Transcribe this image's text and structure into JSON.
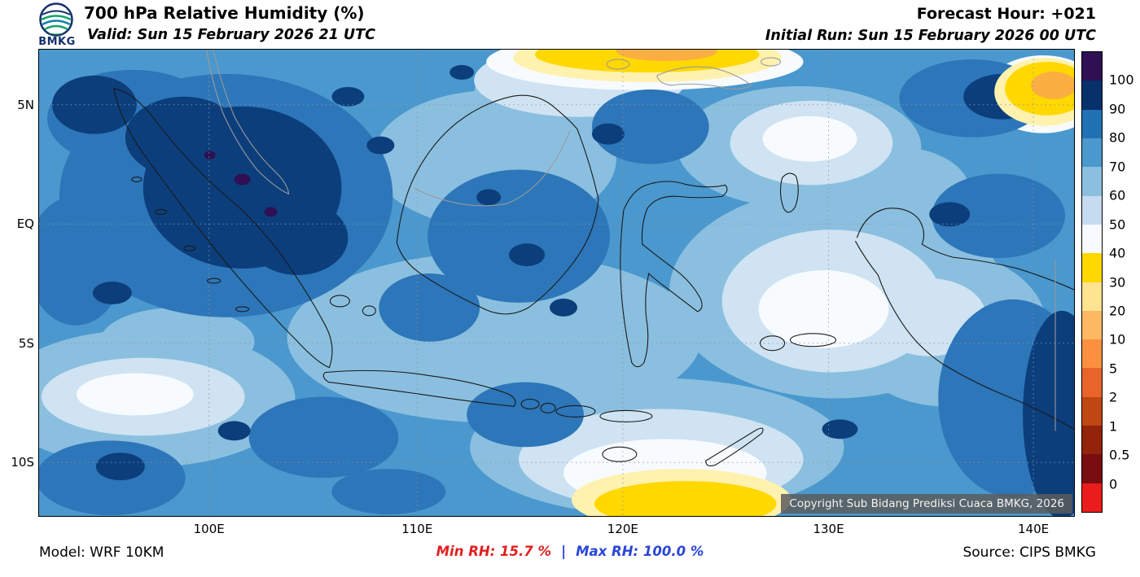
{
  "header": {
    "logo_text": "BMKG",
    "title": "700 hPa Relative Humidity (%)",
    "forecast_hour": "Forecast Hour: +021",
    "valid": "Valid: Sun 15 February 2026 21 UTC",
    "initial_run": "Initial Run: Sun 15 February 2026 00 UTC"
  },
  "map": {
    "copyright": "Copyright Sub Bidang Prediksi Cuaca BMKG, 2026",
    "lat_ticks": [
      {
        "label": "5N",
        "pos": 0.1183
      },
      {
        "label": "EQ",
        "pos": 0.3739
      },
      {
        "label": "5S",
        "pos": 0.6296
      },
      {
        "label": "10S",
        "pos": 0.8852
      }
    ],
    "lon_ticks": [
      {
        "label": "100E",
        "pos": 0.1642
      },
      {
        "label": "110E",
        "pos": 0.3653
      },
      {
        "label": "120E",
        "pos": 0.564
      },
      {
        "label": "130E",
        "pos": 0.7628
      },
      {
        "label": "140E",
        "pos": 0.9607
      }
    ]
  },
  "footer": {
    "model": "Model: WRF 10KM",
    "min_rh": "Min RH:  15.7 %",
    "separator": "|",
    "max_rh": "Max RH: 100.0 %",
    "source": "Source: CIPS BMKG",
    "min_color": "#e01f1f",
    "max_color": "#2a46d8"
  },
  "chart_data": {
    "type": "heatmap",
    "title": "700 hPa Relative Humidity (%)",
    "variable": "Relative Humidity",
    "level": "700 hPa",
    "units": "%",
    "forecast_hour": "+021",
    "valid_time": "Sun 15 February 2026 21 UTC",
    "initial_run": "Sun 15 February 2026 00 UTC",
    "model": "WRF 10KM",
    "source": "CIPS BMKG",
    "min_value": 15.7,
    "max_value": 100.0,
    "x_tick_labels": [
      "100E",
      "110E",
      "120E",
      "130E",
      "140E"
    ],
    "y_tick_labels": [
      "5N",
      "EQ",
      "5S",
      "10S"
    ],
    "grid": true,
    "legend_position": "right",
    "colorbar": {
      "tick_labels": [
        "100",
        "90",
        "80",
        "70",
        "60",
        "50",
        "40",
        "30",
        "20",
        "10",
        "5",
        "2",
        "1",
        "0.5",
        "0"
      ],
      "block_colors": [
        "#2e1053",
        "#08306b",
        "#2171b5",
        "#4a98ce",
        "#8bbfdf",
        "#c6dbef",
        "#f7fbff",
        "#ffd800",
        "#fee391",
        "#fdb863",
        "#fd9040",
        "#e8642a",
        "#bf4712",
        "#93230b",
        "#7a0d10",
        "#ea1c1c"
      ]
    },
    "notable_features": [
      "Very high RH (90-100%) over northern Sumatra and along the eastern map edge",
      "Dry air (RH < 40%, yellow/orange) at the top-centre near the Philippines, in the far northeast corner, and south of Timor toward Australia",
      "Broad 60-80% RH across the Java Sea, Banda Sea and Papua region with drier (40-60%) pockets over the Banda Sea and south of Java"
    ]
  }
}
